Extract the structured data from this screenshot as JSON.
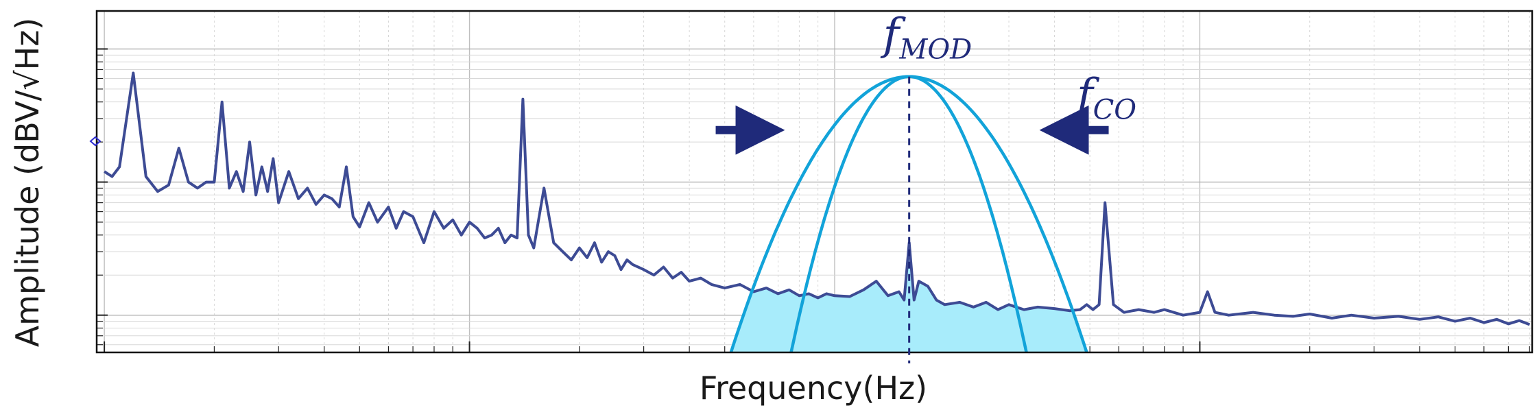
{
  "chart_data": {
    "type": "line",
    "title": "",
    "xlabel": "Frequency(Hz)",
    "ylabel": "Amplitude (dBV/√Hz)",
    "xscale": "log",
    "yscale": "log",
    "xlim": [
      0.953,
      8130
    ],
    "ylim": [
      0.00525,
      1.93
    ],
    "grid": true,
    "tick_labels": "none",
    "annotations": [
      {
        "text": "f",
        "sub": "MOD",
        "x": 160,
        "note": "modulation frequency (dashed vertical line)"
      },
      {
        "text": "f",
        "sub": "CO",
        "x": 355,
        "note": "cut-off, arrows pointing at narrowing passband"
      }
    ],
    "passbands": [
      {
        "name": "",
        "center": 160,
        "edges": [
          52,
          490
        ],
        "peak": 0.62
      },
      {
        "name": "",
        "center": 160,
        "edges": [
          76,
          335
        ],
        "peak": 0.62
      }
    ],
    "series": [
      {
        "name": "",
        "color": "#3d4b94",
        "x": [
          1.0,
          1.05,
          1.1,
          1.2,
          1.3,
          1.4,
          1.5,
          1.6,
          1.7,
          1.8,
          1.9,
          2.0,
          2.1,
          2.2,
          2.3,
          2.4,
          2.5,
          2.6,
          2.7,
          2.8,
          2.9,
          3.0,
          3.2,
          3.4,
          3.6,
          3.8,
          4.0,
          4.2,
          4.4,
          4.6,
          4.8,
          5.0,
          5.3,
          5.6,
          6.0,
          6.3,
          6.6,
          7.0,
          7.5,
          8.0,
          8.5,
          9.0,
          9.5,
          10,
          10.5,
          11,
          11.5,
          12,
          12.5,
          13,
          13.5,
          14,
          14.5,
          15,
          16,
          17,
          18,
          19,
          20,
          21,
          22,
          23,
          24,
          25,
          26,
          27,
          28,
          30,
          32,
          34,
          36,
          38,
          40,
          43,
          46,
          50,
          55,
          60,
          65,
          70,
          75,
          80,
          85,
          90,
          95,
          100,
          110,
          120,
          130,
          140,
          150,
          155,
          160,
          165,
          170,
          180,
          190,
          200,
          220,
          240,
          260,
          280,
          300,
          330,
          360,
          400,
          440,
          470,
          490,
          510,
          530,
          550,
          580,
          620,
          680,
          750,
          800,
          900,
          1000,
          1050,
          1100,
          1200,
          1400,
          1600,
          1800,
          2000,
          2300,
          2600,
          3000,
          3500,
          4000,
          4500,
          5000,
          5500,
          6000,
          6500,
          7000,
          7500,
          8000
        ],
        "values": [
          0.12,
          0.11,
          0.13,
          0.66,
          0.11,
          0.085,
          0.095,
          0.18,
          0.1,
          0.09,
          0.1,
          0.1,
          0.4,
          0.09,
          0.12,
          0.085,
          0.2,
          0.08,
          0.13,
          0.085,
          0.15,
          0.07,
          0.12,
          0.075,
          0.09,
          0.068,
          0.08,
          0.075,
          0.065,
          0.13,
          0.055,
          0.046,
          0.07,
          0.05,
          0.065,
          0.045,
          0.06,
          0.055,
          0.035,
          0.06,
          0.045,
          0.052,
          0.04,
          0.05,
          0.045,
          0.038,
          0.04,
          0.045,
          0.035,
          0.04,
          0.038,
          0.42,
          0.04,
          0.032,
          0.09,
          0.035,
          0.03,
          0.026,
          0.032,
          0.027,
          0.035,
          0.025,
          0.03,
          0.028,
          0.022,
          0.026,
          0.024,
          0.022,
          0.02,
          0.023,
          0.019,
          0.021,
          0.018,
          0.019,
          0.017,
          0.016,
          0.017,
          0.015,
          0.016,
          0.0145,
          0.0155,
          0.014,
          0.0145,
          0.0135,
          0.0145,
          0.014,
          0.0138,
          0.0155,
          0.018,
          0.014,
          0.015,
          0.013,
          0.035,
          0.013,
          0.018,
          0.0165,
          0.013,
          0.012,
          0.0125,
          0.0115,
          0.0125,
          0.011,
          0.012,
          0.011,
          0.0115,
          0.0112,
          0.0108,
          0.011,
          0.012,
          0.011,
          0.012,
          0.07,
          0.012,
          0.0105,
          0.011,
          0.0105,
          0.011,
          0.01,
          0.0105,
          0.015,
          0.0105,
          0.01,
          0.0105,
          0.01,
          0.0098,
          0.0102,
          0.0095,
          0.01,
          0.0095,
          0.0098,
          0.0093,
          0.0097,
          0.009,
          0.0095,
          0.0088,
          0.0093,
          0.0086,
          0.0091,
          0.0085
        ]
      }
    ]
  }
}
